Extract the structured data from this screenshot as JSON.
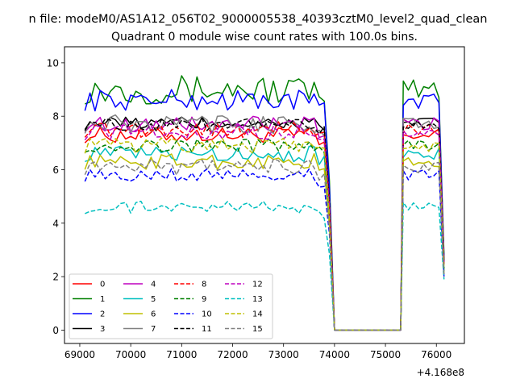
{
  "figure": {
    "suptitle": "n file: modeM0/AS1A12_056T02_9000005538_40393cztM0_level2_quad_clean"
  },
  "chart_data": {
    "type": "line",
    "title": "Quadrant 0 module wise count rates with 100.0s bins.",
    "xlabel": "",
    "ylabel": "",
    "x_offset_label": "+4.168e8",
    "xlim": [
      68700,
      76550
    ],
    "ylim": [
      -0.5,
      10.6
    ],
    "xticks": [
      69000,
      70000,
      71000,
      72000,
      73000,
      74000,
      75000,
      76000
    ],
    "xtick_labels": [
      "69000",
      "70000",
      "71000",
      "72000",
      "73000",
      "74000",
      "75000",
      "76000"
    ],
    "yticks": [
      0,
      2,
      4,
      6,
      8,
      10
    ],
    "ytick_labels": [
      "0",
      "2",
      "4",
      "6",
      "8",
      "10"
    ],
    "grid": false,
    "legend_placement": "lower-left",
    "x_segments": [
      {
        "start": 69100,
        "end": 73900,
        "step": 100
      },
      {
        "start": 75350,
        "end": 76150,
        "step": 100
      }
    ],
    "gap": {
      "x": [
        74000,
        74100,
        75200,
        75300
      ],
      "y": [
        0,
        0,
        0,
        0
      ]
    },
    "series": [
      {
        "name": "0",
        "color": "#ff0000",
        "dash": "solid",
        "level": 7.3,
        "noise": 0.3,
        "tail": 2.5
      },
      {
        "name": "1",
        "color": "#008000",
        "dash": "solid",
        "level": 9.0,
        "noise": 0.55,
        "tail": 2.8
      },
      {
        "name": "2",
        "color": "#0000ff",
        "dash": "solid",
        "level": 8.6,
        "noise": 0.4,
        "tail": 2.7
      },
      {
        "name": "3",
        "color": "#000000",
        "dash": "solid",
        "level": 7.75,
        "noise": 0.25,
        "tail": 2.6
      },
      {
        "name": "4",
        "color": "#bf00bf",
        "dash": "solid",
        "level": 7.7,
        "noise": 0.3,
        "tail": 2.5
      },
      {
        "name": "5",
        "color": "#00bfbf",
        "dash": "solid",
        "level": 6.6,
        "noise": 0.3,
        "tail": 2.2
      },
      {
        "name": "6",
        "color": "#bfbf00",
        "dash": "solid",
        "level": 6.3,
        "noise": 0.3,
        "tail": 2.1
      },
      {
        "name": "7",
        "color": "#808080",
        "dash": "solid",
        "level": 7.7,
        "noise": 0.35,
        "tail": 2.6
      },
      {
        "name": "8",
        "color": "#ff0000",
        "dash": "dashed",
        "level": 7.5,
        "noise": 0.3,
        "tail": 2.4
      },
      {
        "name": "9",
        "color": "#008000",
        "dash": "dashed",
        "level": 6.9,
        "noise": 0.25,
        "tail": 2.3
      },
      {
        "name": "10",
        "color": "#0000ff",
        "dash": "dashed",
        "level": 5.8,
        "noise": 0.25,
        "tail": 2.0
      },
      {
        "name": "11",
        "color": "#000000",
        "dash": "dashed",
        "level": 7.7,
        "noise": 0.25,
        "tail": 2.5
      },
      {
        "name": "12",
        "color": "#bf00bf",
        "dash": "dashed",
        "level": 7.4,
        "noise": 0.3,
        "tail": 2.4
      },
      {
        "name": "13",
        "color": "#00bfbf",
        "dash": "dashed",
        "level": 4.6,
        "noise": 0.25,
        "tail": 1.9
      },
      {
        "name": "14",
        "color": "#bfbf00",
        "dash": "dashed",
        "level": 6.9,
        "noise": 0.3,
        "tail": 2.3
      },
      {
        "name": "15",
        "color": "#808080",
        "dash": "dashed",
        "level": 6.1,
        "noise": 0.3,
        "tail": 2.0
      }
    ]
  }
}
